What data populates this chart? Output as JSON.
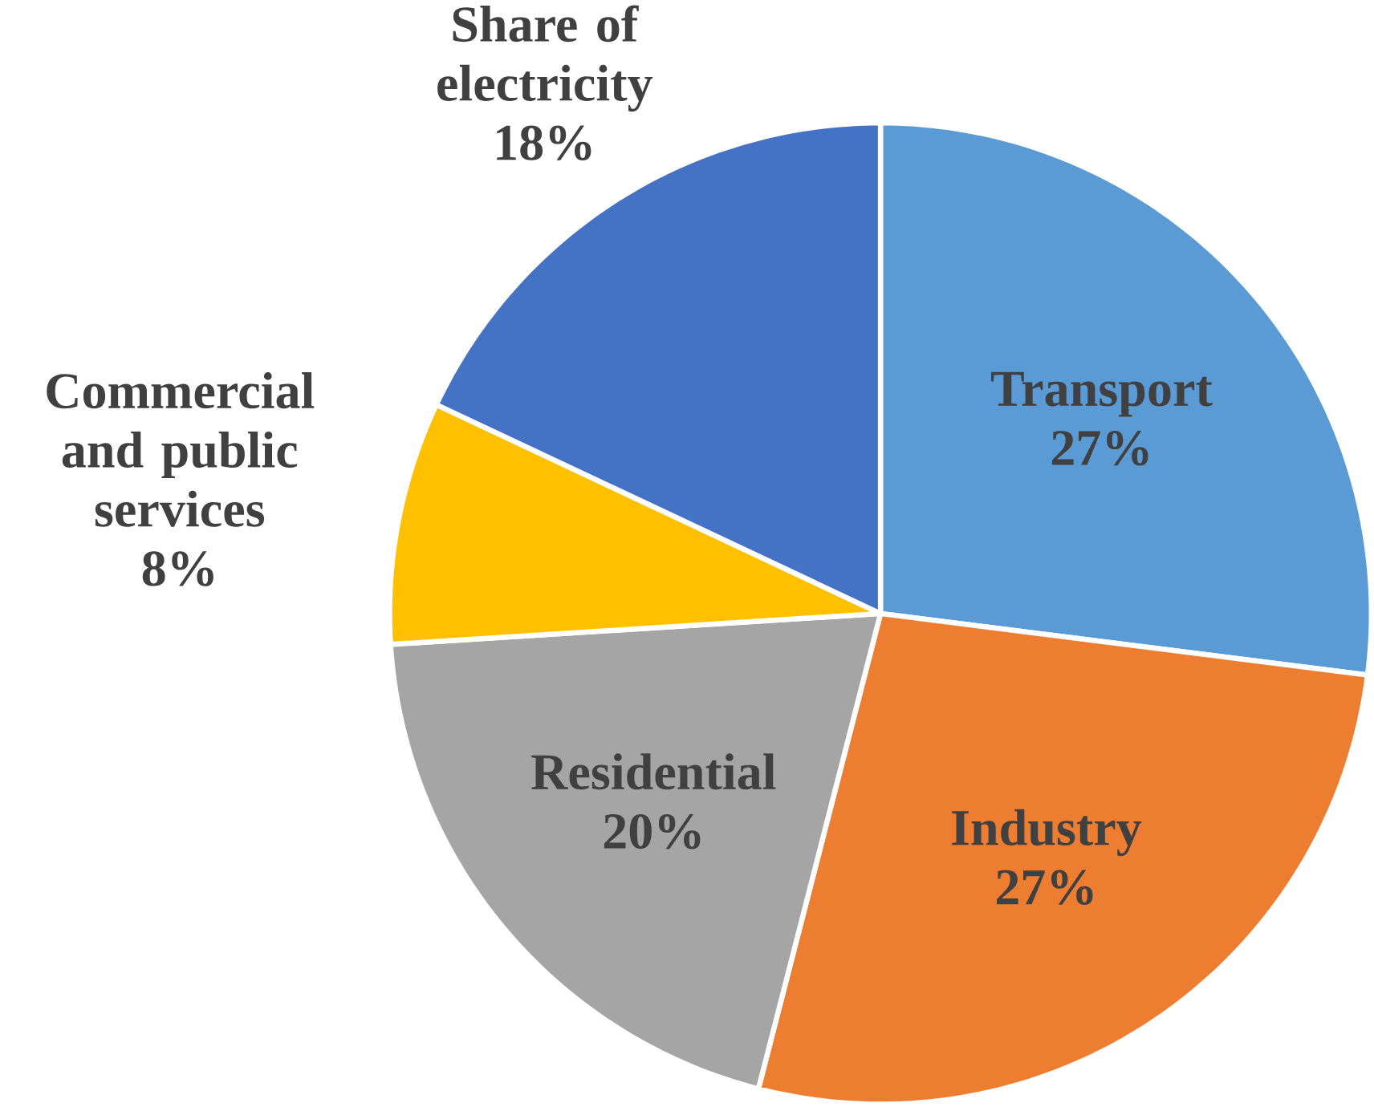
{
  "chart_data": {
    "type": "pie",
    "categories": [
      "Transport",
      "Industry",
      "Residential",
      "Commercial and public services",
      "Share of electricity"
    ],
    "values": [
      27,
      27,
      20,
      8,
      18
    ],
    "colors": [
      "#5b9bd5",
      "#ed7d31",
      "#a5a5a5",
      "#ffc000",
      "#4472c4"
    ],
    "value_labels": [
      "27%",
      "27%",
      "20%",
      "8%",
      "18%"
    ]
  }
}
